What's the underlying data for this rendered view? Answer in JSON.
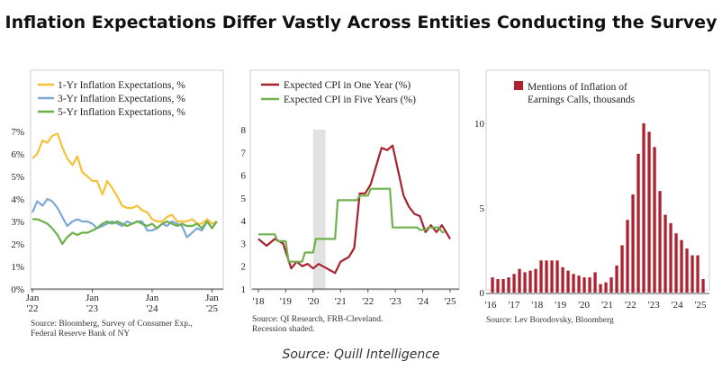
{
  "title": "Inflation Expectations Differ Vastly Across Entities Conducting the Survey",
  "footer": "Source: Quill Intelligence",
  "chart_data": [
    {
      "type": "line",
      "series": [
        {
          "name": "1-Yr Inflation Expectations, %",
          "color": "#F6C137",
          "x": [
            2022.0,
            2022.08,
            2022.17,
            2022.25,
            2022.33,
            2022.42,
            2022.5,
            2022.58,
            2022.67,
            2022.75,
            2022.83,
            2022.92,
            2023.0,
            2023.08,
            2023.17,
            2023.25,
            2023.33,
            2023.42,
            2023.5,
            2023.58,
            2023.67,
            2023.75,
            2023.83,
            2023.92,
            2024.0,
            2024.08,
            2024.17,
            2024.25,
            2024.33,
            2024.42,
            2024.5,
            2024.58,
            2024.67,
            2024.75,
            2024.83,
            2024.92,
            2025.0,
            2025.08
          ],
          "values": [
            5.8,
            6.0,
            6.6,
            6.5,
            6.8,
            6.9,
            6.3,
            5.8,
            5.5,
            5.9,
            5.2,
            5.0,
            4.8,
            4.8,
            4.2,
            4.8,
            4.5,
            4.1,
            3.7,
            3.6,
            3.6,
            3.7,
            3.5,
            3.4,
            3.1,
            3.0,
            3.0,
            3.2,
            3.3,
            3.0,
            3.0,
            3.0,
            3.1,
            2.9,
            2.9,
            3.1,
            2.9,
            3.0
          ]
        },
        {
          "name": "3-Yr Inflation Expectations, %",
          "color": "#7AA8D8",
          "x": [
            2022.0,
            2022.08,
            2022.17,
            2022.25,
            2022.33,
            2022.42,
            2022.5,
            2022.58,
            2022.67,
            2022.75,
            2022.83,
            2022.92,
            2023.0,
            2023.08,
            2023.17,
            2023.25,
            2023.33,
            2023.42,
            2023.5,
            2023.58,
            2023.67,
            2023.75,
            2023.83,
            2023.92,
            2024.0,
            2024.08,
            2024.17,
            2024.25,
            2024.33,
            2024.42,
            2024.5,
            2024.58,
            2024.67,
            2024.75,
            2024.83,
            2024.92,
            2025.0,
            2025.08
          ],
          "values": [
            3.4,
            3.9,
            3.7,
            4.0,
            3.9,
            3.6,
            3.2,
            2.8,
            3.0,
            3.1,
            3.0,
            3.0,
            2.9,
            2.7,
            2.8,
            2.9,
            3.0,
            2.9,
            2.8,
            3.0,
            2.9,
            3.0,
            3.0,
            2.6,
            2.6,
            2.7,
            2.9,
            2.8,
            3.0,
            2.9,
            2.8,
            2.3,
            2.5,
            2.7,
            2.6,
            3.0,
            2.7,
            3.0
          ]
        },
        {
          "name": "5-Yr Inflation Expectations, %",
          "color": "#6DAF4A",
          "x": [
            2022.0,
            2022.08,
            2022.17,
            2022.25,
            2022.33,
            2022.42,
            2022.5,
            2022.58,
            2022.67,
            2022.75,
            2022.83,
            2022.92,
            2023.0,
            2023.08,
            2023.17,
            2023.25,
            2023.33,
            2023.42,
            2023.5,
            2023.58,
            2023.67,
            2023.75,
            2023.83,
            2023.92,
            2024.0,
            2024.08,
            2024.17,
            2024.25,
            2024.33,
            2024.42,
            2024.5,
            2024.58,
            2024.67,
            2024.75,
            2024.83,
            2024.92,
            2025.0,
            2025.08
          ],
          "values": [
            3.1,
            3.1,
            3.0,
            2.9,
            2.7,
            2.4,
            2.0,
            2.3,
            2.5,
            2.4,
            2.5,
            2.5,
            2.6,
            2.7,
            2.9,
            3.0,
            2.9,
            3.0,
            2.9,
            2.8,
            2.9,
            3.0,
            2.9,
            2.8,
            2.9,
            2.7,
            2.9,
            3.0,
            2.9,
            2.8,
            2.9,
            2.8,
            2.8,
            2.9,
            2.7,
            3.0,
            2.7,
            3.0
          ]
        }
      ],
      "legend_position": "top",
      "ylim": [
        0,
        7
      ],
      "y_ticks": [
        "0%",
        "1%",
        "2%",
        "3%",
        "4%",
        "5%",
        "6%",
        "7%"
      ],
      "x_ticks": [
        {
          "line1": "Jan",
          "line2": "'22"
        },
        {
          "line1": "Jan",
          "line2": "'23"
        },
        {
          "line1": "Jan",
          "line2": "'24"
        },
        {
          "line1": "Jan",
          "line2": "'25"
        }
      ],
      "grid": false,
      "source_lines": [
        "Source: Bloomberg, Survey of Consumer Exp.,",
        "Federal Reserve Bank of NY"
      ]
    },
    {
      "type": "line",
      "series": [
        {
          "name": "Expected CPI in One Year (%)",
          "color": "#A8212F",
          "x": [
            2018.0,
            2018.3,
            2018.6,
            2018.9,
            2019.2,
            2019.4,
            2019.6,
            2019.8,
            2020.0,
            2020.2,
            2020.5,
            2020.8,
            2021.0,
            2021.3,
            2021.5,
            2021.7,
            2021.9,
            2022.1,
            2022.3,
            2022.5,
            2022.7,
            2022.9,
            2023.1,
            2023.3,
            2023.5,
            2023.7,
            2023.9,
            2024.1,
            2024.3,
            2024.5,
            2024.7,
            2024.9,
            2025.0
          ],
          "values": [
            3.2,
            2.9,
            3.2,
            3.0,
            1.9,
            2.2,
            2.0,
            2.1,
            1.9,
            2.1,
            1.9,
            1.7,
            2.2,
            2.4,
            2.8,
            5.2,
            5.2,
            5.6,
            6.4,
            7.2,
            7.1,
            7.3,
            6.2,
            5.1,
            4.6,
            4.3,
            4.2,
            3.5,
            3.8,
            3.5,
            3.8,
            3.4,
            3.2
          ]
        },
        {
          "name": "Expected CPI in Five Years (%)",
          "color": "#71B24F",
          "x": [
            2018.0,
            2018.6,
            2018.7,
            2019.0,
            2019.1,
            2019.6,
            2019.7,
            2020.0,
            2020.1,
            2020.8,
            2020.9,
            2021.6,
            2021.7,
            2022.0,
            2022.1,
            2022.8,
            2022.9,
            2023.8,
            2023.9,
            2024.1,
            2024.2,
            2024.6,
            2024.7,
            2024.8
          ],
          "values": [
            3.4,
            3.4,
            3.1,
            3.1,
            2.2,
            2.2,
            2.6,
            2.6,
            3.2,
            3.2,
            4.9,
            4.9,
            5.1,
            5.1,
            5.4,
            5.4,
            3.7,
            3.7,
            3.6,
            3.6,
            3.7,
            3.7,
            3.5,
            3.5
          ]
        }
      ],
      "shaded_region": [
        2020.0,
        2020.45
      ],
      "legend_position": "top",
      "ylim": [
        1,
        8
      ],
      "y_ticks": [
        "1",
        "2",
        "3",
        "4",
        "5",
        "6",
        "7",
        "8"
      ],
      "x_ticks": [
        "'18",
        "'19",
        "'20",
        "'21",
        "'22",
        "'23",
        "'24",
        "'25"
      ],
      "grid": false,
      "source_lines": [
        "Source: QI Research, FRB-Cleveland.",
        "Recession shaded."
      ]
    },
    {
      "type": "bar",
      "series": [
        {
          "name": "Mentions of Inflation of Earnings Calls, thousands",
          "color": "#B1202E",
          "values": [
            0.9,
            0.8,
            0.8,
            0.9,
            1.1,
            1.4,
            1.2,
            1.3,
            1.4,
            1.9,
            1.9,
            1.9,
            1.9,
            1.5,
            1.3,
            1.1,
            1.0,
            0.9,
            0.9,
            1.2,
            0.5,
            0.6,
            0.9,
            1.6,
            2.8,
            4.3,
            5.8,
            8.2,
            10.0,
            9.5,
            8.6,
            6.0,
            4.6,
            4.1,
            3.5,
            3.1,
            2.6,
            2.2,
            2.2,
            0.8
          ]
        }
      ],
      "legend_position": "top",
      "ylim": [
        0,
        10
      ],
      "y_ticks": [
        "0",
        "5",
        "10"
      ],
      "x_ticks": [
        "'16",
        "'17",
        "'18",
        "'19",
        "'20",
        "'21",
        "'22",
        "'23",
        "'24",
        "'25"
      ],
      "grid": false,
      "source_lines": [
        "Source: Lev Borodovsky, Bloomberg"
      ]
    }
  ]
}
